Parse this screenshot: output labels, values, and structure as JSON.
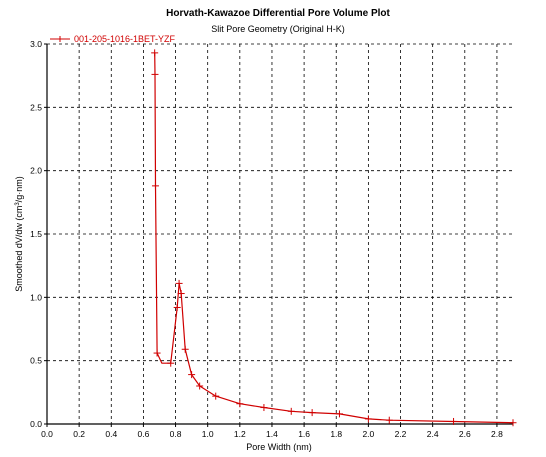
{
  "chart_data": {
    "type": "line",
    "title": "Horvath-Kawazoe Differential Pore Volume Plot",
    "subtitle": "Slit Pore Geometry (Original H-K)",
    "xlabel": "Pore Width (nm)",
    "ylabel_parts": [
      "Smoothed dV/dw (cm",
      "3",
      "/g·nm)"
    ],
    "xlim": [
      0.0,
      2.9
    ],
    "ylim": [
      0.0,
      3.0
    ],
    "x_ticks": [
      "0.0",
      "0.2",
      "0.4",
      "0.6",
      "0.8",
      "1.0",
      "1.2",
      "1.4",
      "1.6",
      "1.8",
      "2.0",
      "2.2",
      "2.4",
      "2.6",
      "2.8"
    ],
    "y_ticks": [
      "0.0",
      "0.5",
      "1.0",
      "1.5",
      "2.0",
      "2.5",
      "3.0"
    ],
    "grid": true,
    "legend_position": "top-left",
    "series": [
      {
        "name": "001-205-1016-1BET-YZF",
        "color": "#d00000",
        "marker": "plus",
        "x": [
          0.67,
          0.672,
          0.675,
          0.685,
          0.715,
          0.77,
          0.81,
          0.822,
          0.835,
          0.86,
          0.9,
          0.95,
          1.05,
          1.2,
          1.35,
          1.52,
          1.65,
          1.82,
          2.0,
          2.13,
          2.53,
          2.9
        ],
        "y": [
          2.93,
          2.76,
          1.88,
          0.56,
          0.48,
          0.48,
          0.92,
          1.11,
          1.03,
          0.59,
          0.39,
          0.3,
          0.22,
          0.16,
          0.13,
          0.1,
          0.09,
          0.08,
          0.04,
          0.03,
          0.02,
          0.01
        ],
        "markers_x": [
          0.67,
          0.672,
          0.675,
          0.685,
          0.77,
          0.81,
          0.822,
          0.835,
          0.86,
          0.9,
          0.95,
          1.05,
          1.2,
          1.35,
          1.52,
          1.65,
          1.82,
          2.0,
          2.13,
          2.53,
          2.9
        ],
        "markers_y": [
          2.93,
          2.76,
          1.88,
          0.56,
          0.48,
          0.92,
          1.11,
          1.03,
          0.59,
          0.39,
          0.3,
          0.22,
          0.16,
          0.13,
          0.1,
          0.09,
          0.08,
          0.04,
          0.03,
          0.02,
          0.01
        ]
      }
    ]
  }
}
